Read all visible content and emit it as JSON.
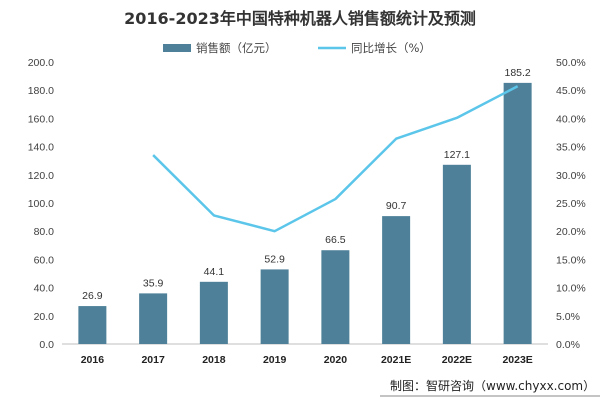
{
  "chart_data": {
    "type": "bar",
    "title": "2016-2023年中国特种机器人销售额统计及预测",
    "categories": [
      "2016",
      "2017",
      "2018",
      "2019",
      "2020",
      "2021E",
      "2022E",
      "2023E"
    ],
    "series": [
      {
        "name": "销售额（亿元）",
        "type": "bar",
        "axis": "left",
        "values": [
          26.9,
          35.9,
          44.1,
          52.9,
          66.5,
          90.7,
          127.1,
          185.2
        ],
        "color": "#4e8199"
      },
      {
        "name": "同比增长（%）",
        "type": "line",
        "axis": "right",
        "values": [
          null,
          33.5,
          22.8,
          20.0,
          25.7,
          36.4,
          40.1,
          45.7
        ],
        "color": "#5cc6ea"
      }
    ],
    "data_labels": [
      "26.9",
      "35.9",
      "44.1",
      "52.9",
      "66.5",
      "90.7",
      "127.1",
      "185.2"
    ],
    "ylim_left": [
      0,
      200
    ],
    "yticks_left": [
      "0.0",
      "20.0",
      "40.0",
      "60.0",
      "80.0",
      "100.0",
      "120.0",
      "140.0",
      "160.0",
      "180.0",
      "200.0"
    ],
    "ylim_right": [
      0,
      50
    ],
    "yticks_right": [
      "0.0%",
      "5.0%",
      "10.0%",
      "15.0%",
      "20.0%",
      "25.0%",
      "30.0%",
      "35.0%",
      "40.0%",
      "45.0%",
      "50.0%"
    ],
    "legend_position": "top",
    "grid": false
  },
  "source": "制图：智研咨询（www.chyxx.com）",
  "watermark": "智研咨询 www.chyxx.com"
}
